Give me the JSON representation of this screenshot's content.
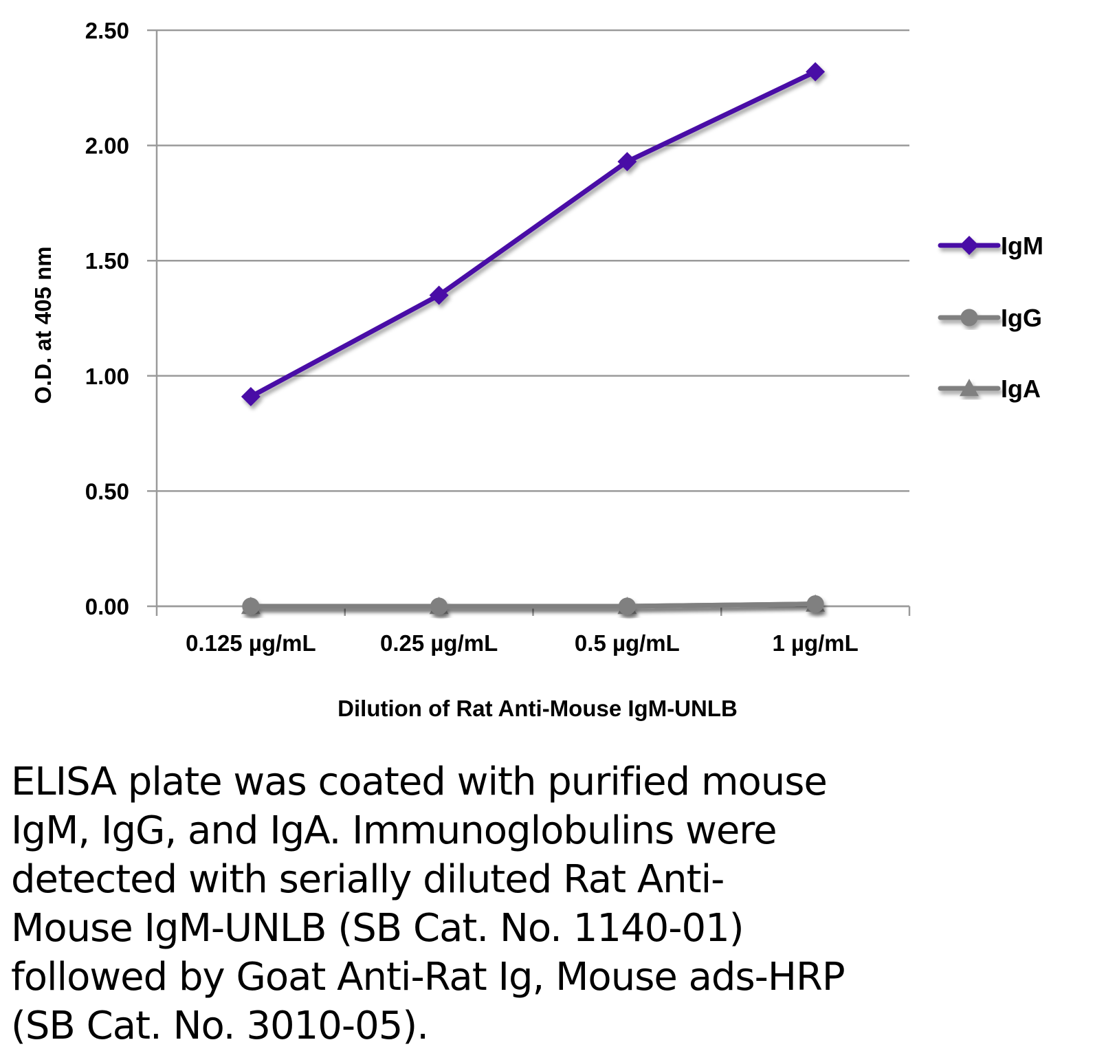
{
  "chart_data": {
    "type": "line",
    "title": "",
    "xlabel": "Dilution of Rat Anti-Mouse IgM-UNLB",
    "ylabel": "O.D. at 405 nm",
    "ylim": [
      0,
      2.5
    ],
    "yticks": [
      "0.00",
      "0.50",
      "1.00",
      "1.50",
      "2.00",
      "2.50"
    ],
    "ytick_values": [
      0,
      0.5,
      1.0,
      1.5,
      2.0,
      2.5
    ],
    "categories": [
      "0.125 µg/mL",
      "0.25 µg/mL",
      "0.5 µg/mL",
      "1 µg/mL"
    ],
    "grid": true,
    "legend_position": "right",
    "series": [
      {
        "name": "IgM",
        "marker": "diamond",
        "color": "#4a0fa6",
        "values": [
          0.91,
          1.35,
          1.93,
          2.32
        ]
      },
      {
        "name": "IgG",
        "marker": "circle",
        "color": "#808080",
        "values": [
          0.0,
          0.0,
          0.0,
          0.01
        ]
      },
      {
        "name": "IgA",
        "marker": "triangle",
        "color": "#808080",
        "values": [
          0.0,
          0.0,
          0.0,
          0.01
        ]
      }
    ]
  },
  "caption": "ELISA plate was coated with purified mouse\nIgM, IgG, and IgA.  Immunoglobulins were\ndetected with serially diluted Rat Anti-\nMouse IgM-UNLB (SB Cat. No. 1140-01)\nfollowed by Goat Anti-Rat Ig, Mouse ads-HRP\n(SB Cat. No. 3010-05)."
}
